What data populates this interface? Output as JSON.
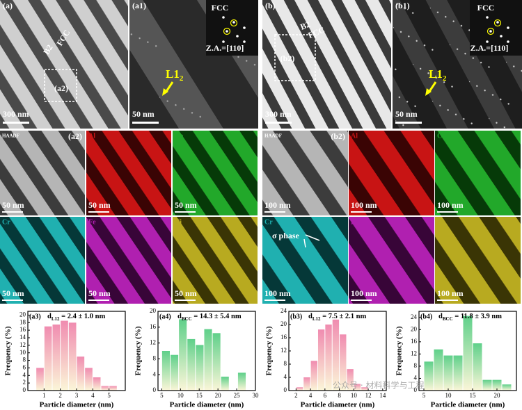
{
  "micrographs": [
    {
      "tag": "(a)",
      "scale_bar": "300 nm",
      "notes": [
        "B2",
        "FCC",
        "(a2)"
      ]
    },
    {
      "tag": "(a1)",
      "scale_bar": "50 nm",
      "notes": [
        "FCC",
        "Z.A.=[110]"
      ],
      "phase": {
        "text": "L1",
        "subscript": "2"
      }
    },
    {
      "tag": "(b)",
      "scale_bar": "300 nm",
      "notes": [
        "B2",
        "FCC",
        "(b2)"
      ]
    },
    {
      "tag": "(b1)",
      "scale_bar": "50 nm",
      "notes": [
        "FCC",
        "Z.A.=[110]"
      ],
      "phase": {
        "text": "L1",
        "subscript": "2"
      }
    }
  ],
  "maps": [
    {
      "tag": "(a2)",
      "scale_bar": "50 nm",
      "cells": [
        "HAADF",
        "Al",
        "Co",
        "Cr",
        "Fe",
        "Ni"
      ]
    },
    {
      "tag": "(b2)",
      "scale_bar": "100 nm",
      "cells": [
        "HAADF",
        "Al",
        "Co",
        "Cr",
        "Fe",
        "Ni"
      ],
      "note": "σ phase"
    }
  ],
  "watermark": "公众号 · 材料科学与工程",
  "chart_data": [
    {
      "type": "histogram",
      "tag": "(a3)",
      "title": {
        "symbol": "d",
        "subscript": "L12",
        "text": " = 2.4 ± 1.0 nm"
      },
      "x_label": "Particle diameter (nm)",
      "y_label": "Frequency (%)",
      "color": "#f08cb0",
      "bins": [
        0.5,
        1,
        1.5,
        2,
        2.5,
        3,
        3.5,
        4,
        4.5,
        5,
        5.5
      ],
      "values": [
        6,
        17,
        17.5,
        18.5,
        18,
        9,
        6,
        3.5,
        1.2,
        1.2
      ],
      "xlim": [
        0,
        6
      ],
      "xticks": [
        1,
        2,
        3,
        4,
        5
      ],
      "ylim": [
        0,
        21
      ],
      "yticks": [
        0,
        2,
        4,
        6,
        8,
        10,
        12,
        14,
        16,
        18,
        20
      ]
    },
    {
      "type": "histogram",
      "tag": "(a4)",
      "title": {
        "symbol": "d",
        "subscript": "BCC",
        "text": " = 14.3 ± 5.4 nm"
      },
      "x_label": "Particle diameter (nm)",
      "y_label": "Frequency (%)",
      "color": "#5fd08a",
      "bins": [
        5,
        7.25,
        9.5,
        11.75,
        14,
        16.25,
        18.5,
        20.75,
        23,
        25.25,
        27.5
      ],
      "values": [
        10,
        9,
        18,
        13,
        11.5,
        15.5,
        14.5,
        3.5,
        0,
        4.5
      ],
      "xlim": [
        4,
        30
      ],
      "xticks": [
        5,
        10,
        15,
        20,
        25,
        30
      ],
      "ylim": [
        0,
        20
      ],
      "yticks": [
        0,
        4,
        8,
        12,
        16,
        20
      ]
    },
    {
      "type": "histogram",
      "tag": "(b3)",
      "title": {
        "symbol": "d",
        "subscript": "L12",
        "text": " = 7.5 ± 2.1 nm"
      },
      "x_label": "Particle diameter (nm)",
      "y_label": "Frequency (%)",
      "color": "#f08cb0",
      "bins": [
        2,
        3,
        4,
        5,
        6,
        7,
        8,
        9,
        10,
        11,
        12
      ],
      "values": [
        1,
        4,
        9,
        18.5,
        20,
        21.5,
        17,
        6.5,
        2,
        1
      ],
      "xlim": [
        1,
        14.5
      ],
      "xticks": [
        2,
        4,
        6,
        8,
        10,
        12,
        14
      ],
      "ylim": [
        0,
        24
      ],
      "yticks": [
        0,
        4,
        8,
        12,
        16,
        20,
        24
      ]
    },
    {
      "type": "histogram",
      "tag": "(b4)",
      "title": {
        "symbol": "d",
        "subscript": "BCC",
        "text": " = 11.8 ± 3.9 nm"
      },
      "x_label": "Particle diameter (nm)",
      "y_label": "Frequency (%)",
      "color": "#5fd08a",
      "bins": [
        5,
        7,
        9,
        11,
        13,
        15,
        17,
        19,
        21,
        23
      ],
      "values": [
        9.5,
        13.5,
        11.5,
        11.5,
        24.5,
        15.5,
        3.5,
        3.5,
        2
      ],
      "xlim": [
        4,
        24
      ],
      "xticks": [
        5,
        10,
        15,
        20
      ],
      "ylim": [
        0,
        26
      ],
      "yticks": [
        0,
        4,
        8,
        12,
        16,
        20,
        24
      ]
    }
  ]
}
